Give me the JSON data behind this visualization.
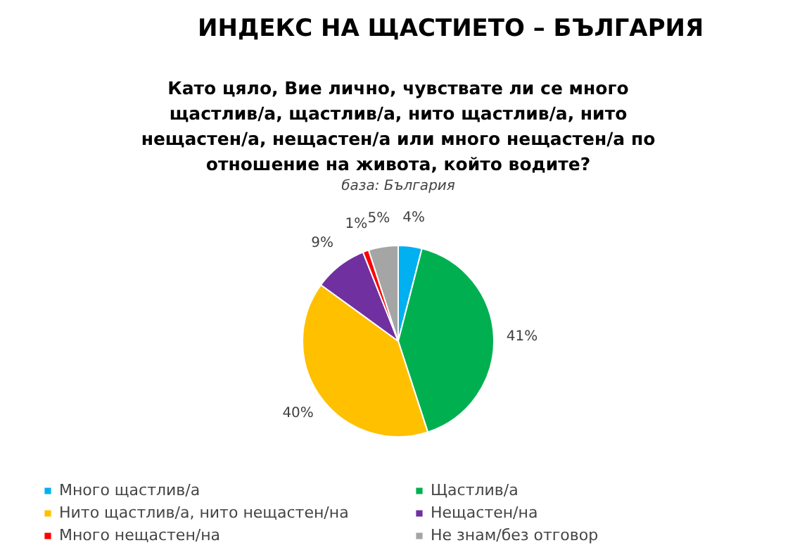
{
  "chart_data": {
    "type": "pie",
    "title": "ИНДЕКС НА ЩАСТИЕТО – БЪЛГАРИЯ",
    "subtitle": "Като цяло, Вие лично, чувствате ли се много щастлив/а, щастлив/а, нито щастлив/а, нито нещастен/а, нещастен/а или много нещастен/а по отношение на живота, който водите?",
    "annotations": [
      "база: България"
    ],
    "categories": [
      "Много щастлив/а",
      "Щастлив/а",
      "Нито щастлив/а, нито нещастен/на",
      "Нещастен/на",
      "Много нещастен/на",
      "Не знам/без отговор"
    ],
    "values": [
      4,
      41,
      40,
      9,
      1,
      5
    ],
    "colors": [
      "#00b0f0",
      "#00b050",
      "#ffc000",
      "#7030a0",
      "#ff0000",
      "#a5a5a5"
    ],
    "value_labels": [
      "4%",
      "41%",
      "40%",
      "9%",
      "1%",
      "5%"
    ],
    "legend": "bottom"
  }
}
